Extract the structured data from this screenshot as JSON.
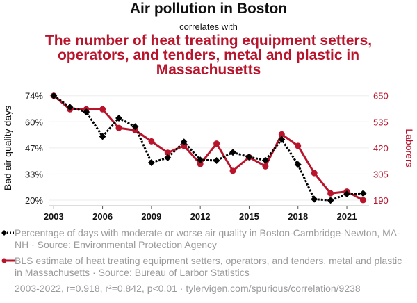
{
  "header": {
    "title": "Air pollution in Boston",
    "subtitle": "correlates with",
    "title2": "The number of heat treating equipment setters, operators, and tenders, metal and plastic in Massachusetts"
  },
  "colors": {
    "series1": "#000000",
    "series2": "#b8142c",
    "legend_text": "#9a9a9a",
    "grid": "#eeeeee"
  },
  "legend": {
    "items": [
      {
        "label": "Percentage of days with moderate or worse air quality in Boston-Cambridge-Newton, MA-NH · Source: Environmental Protection Agency",
        "icon": "dotted-line-diamond-icon"
      },
      {
        "label": "BLS estimate of heat treating equipment setters, operators, and tenders, metal and plastic in Massachusetts · Source: Bureau of Larbor Statistics",
        "icon": "solid-line-circle-icon"
      }
    ]
  },
  "footer": "2003-2022, r=0.918, r²=0.842, p<0.01 · tylervigen.com/spurious/correlation/9238",
  "chart_data": {
    "type": "line",
    "title": "Air pollution in Boston correlates with The number of heat treating equipment setters, operators, and tenders, metal and plastic in Massachusetts",
    "x": [
      2003,
      2004,
      2005,
      2006,
      2007,
      2008,
      2009,
      2010,
      2011,
      2012,
      2013,
      2014,
      2015,
      2016,
      2017,
      2018,
      2019,
      2020,
      2021,
      2022
    ],
    "xlabel": "",
    "xticks": [
      "2003",
      "2006",
      "2009",
      "2012",
      "2015",
      "2018",
      "2021"
    ],
    "xlim": [
      2002.5,
      2022.4
    ],
    "grid": true,
    "legend_position": "bottom",
    "y_left": {
      "label": "Bad air quality days",
      "ticks": [
        "20%",
        "33%",
        "47%",
        "60%",
        "74%"
      ],
      "ylim": [
        20,
        74
      ]
    },
    "y_right": {
      "label": "Laborers",
      "ticks": [
        "190",
        "305",
        "420",
        "535",
        "650"
      ],
      "ylim": [
        190,
        650
      ]
    },
    "series": [
      {
        "name": "Percentage of days with moderate or worse air quality in Boston-Cambridge-Newton, MA-NH",
        "axis": "left",
        "style": "dotted",
        "marker": "diamond",
        "values": [
          74.0,
          68.0,
          65.6,
          52.9,
          62.4,
          58.0,
          39.4,
          41.9,
          50.1,
          40.8,
          40.5,
          44.7,
          42.3,
          40.6,
          51.4,
          38.4,
          20.5,
          19.9,
          23.2,
          23.5
        ]
      },
      {
        "name": "BLS estimate of heat treating equipment setters, operators, and tenders, metal and plastic in Massachusetts",
        "axis": "right",
        "style": "solid",
        "marker": "circle",
        "values": [
          650,
          590,
          590,
          590,
          508,
          498,
          449,
          399,
          429,
          349,
          439,
          319,
          379,
          339,
          480,
          429,
          309,
          220,
          228,
          190
        ]
      }
    ]
  }
}
